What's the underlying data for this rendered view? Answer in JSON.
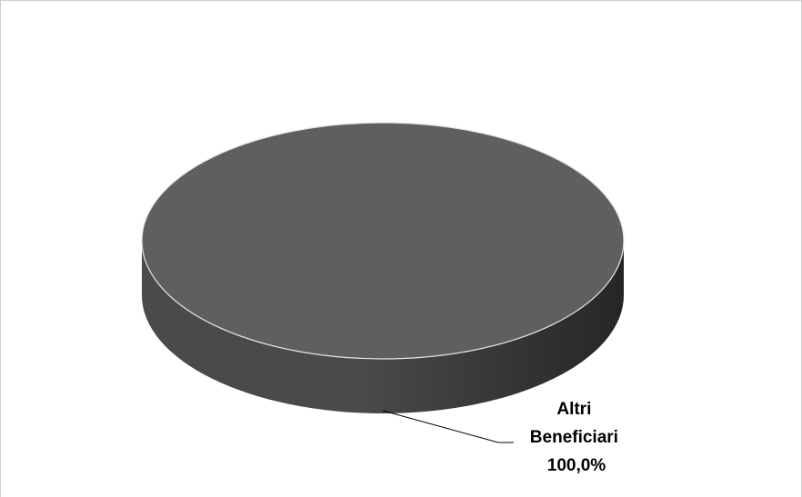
{
  "chart_data": {
    "type": "pie",
    "style": "3d",
    "categories": [
      "Altri Beneficiari"
    ],
    "values": [
      100.0
    ],
    "data_labels": [
      {
        "name": "Altri",
        "name_line2": "Beneficiari",
        "percent": "100,0%"
      }
    ],
    "colors": {
      "top": "#5f5f5f",
      "side_light": "#4a4a4a",
      "side_dark": "#262626",
      "edge": "#e6e6e6",
      "leader_line": "#000000"
    }
  }
}
